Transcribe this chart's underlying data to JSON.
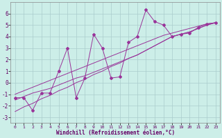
{
  "xlabel": "Windchill (Refroidissement éolien,°C)",
  "bg_color": "#cceee8",
  "grid_color": "#aacccc",
  "line_color": "#993399",
  "x_data": [
    0,
    1,
    2,
    3,
    4,
    5,
    6,
    7,
    8,
    9,
    10,
    11,
    12,
    13,
    14,
    15,
    16,
    17,
    18,
    19,
    20,
    21,
    22,
    23
  ],
  "y_main": [
    -1.3,
    -1.3,
    -2.4,
    -0.9,
    -0.9,
    1.0,
    3.0,
    -1.3,
    0.4,
    4.2,
    3.0,
    0.4,
    0.5,
    3.5,
    4.0,
    6.3,
    5.3,
    5.0,
    4.0,
    4.2,
    4.3,
    4.8,
    5.1,
    5.2
  ],
  "y_line1": [
    -1.5,
    -1.2,
    -0.9,
    -0.7,
    -0.5,
    -0.2,
    0.1,
    0.4,
    0.6,
    0.9,
    1.2,
    1.5,
    1.8,
    2.1,
    2.4,
    2.8,
    3.2,
    3.6,
    4.0,
    4.2,
    4.4,
    4.7,
    5.0,
    5.2
  ],
  "y_line2": [
    -2.5,
    -2.1,
    -1.8,
    -1.4,
    -1.1,
    -0.7,
    -0.4,
    0.0,
    0.3,
    0.7,
    1.0,
    1.4,
    1.7,
    2.1,
    2.4,
    2.8,
    3.2,
    3.6,
    4.0,
    4.2,
    4.4,
    4.7,
    5.0,
    5.2
  ],
  "y_line3": [
    -1.0,
    -0.7,
    -0.4,
    -0.1,
    0.2,
    0.5,
    0.8,
    1.1,
    1.4,
    1.7,
    2.0,
    2.3,
    2.6,
    2.9,
    3.2,
    3.5,
    3.8,
    4.1,
    4.3,
    4.5,
    4.7,
    4.9,
    5.1,
    5.2
  ],
  "ylim": [
    -3.5,
    7.0
  ],
  "xlim": [
    -0.5,
    23.5
  ],
  "yticks": [
    -3,
    -2,
    -1,
    0,
    1,
    2,
    3,
    4,
    5,
    6
  ]
}
